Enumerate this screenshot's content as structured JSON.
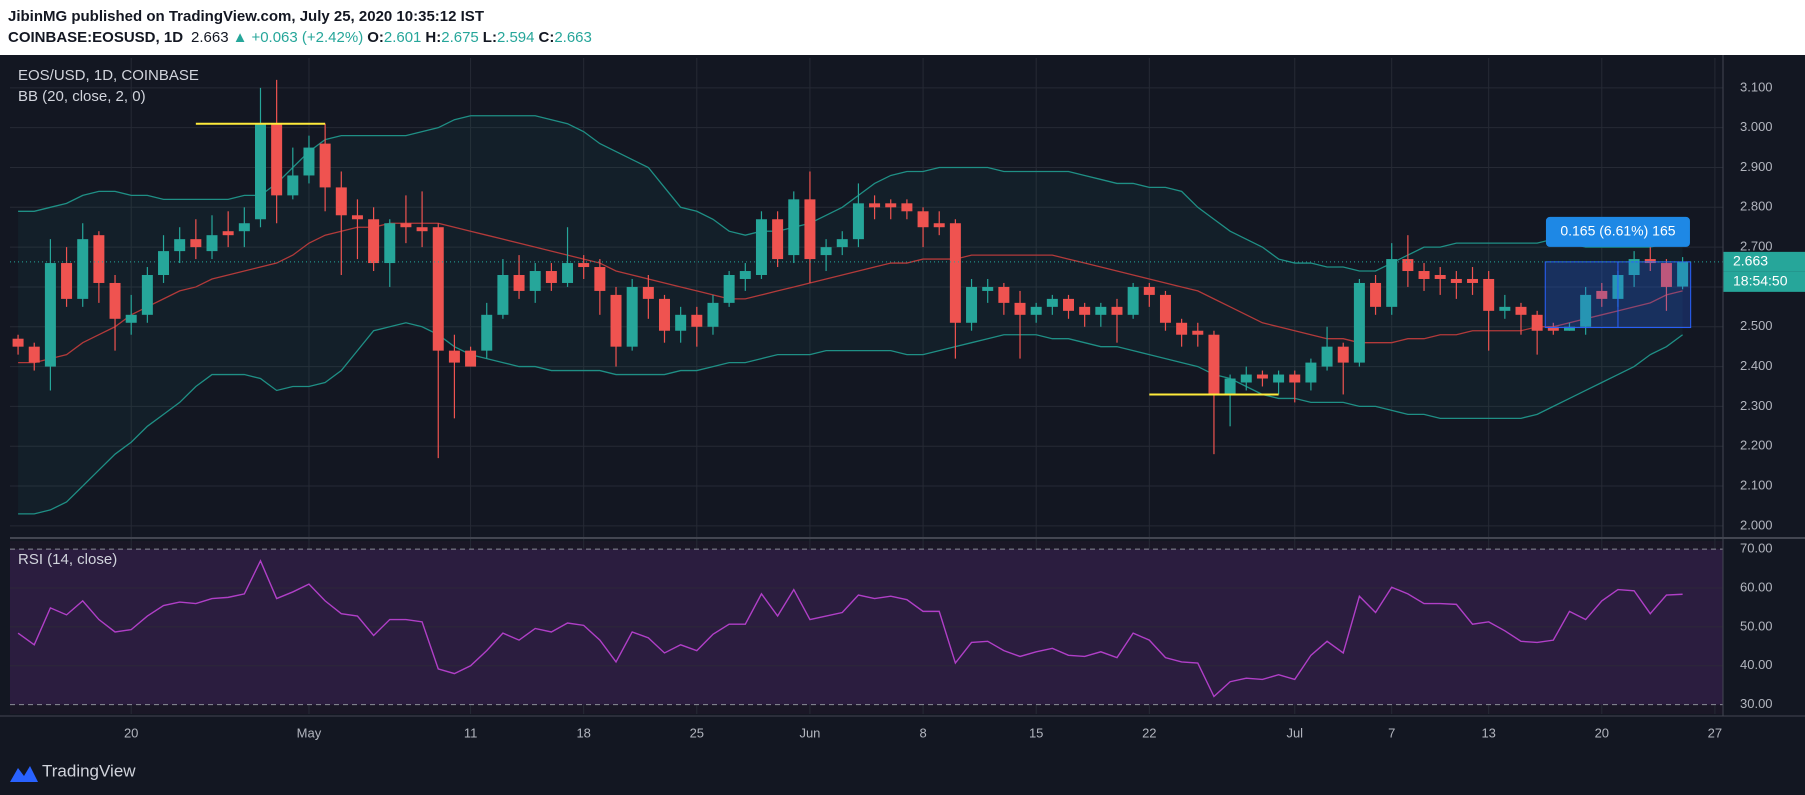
{
  "header": {
    "line1": "JibinMG published on TradingView.com, July 25, 2020 10:35:12 IST",
    "symbol": "COINBASE:EOSUSD, 1D",
    "price": "2.663",
    "change": "+0.063 (+2.42%)",
    "o_label": "O:",
    "o": "2.601",
    "h_label": "H:",
    "h": "2.675",
    "l_label": "L:",
    "l": "2.594",
    "c_label": "C:",
    "c": "2.663"
  },
  "footer": "TradingView",
  "chart_data": [
    {
      "type": "candlestick",
      "title": "EOS/USD, 1D, COINBASE",
      "indicator": "BB (20, close, 2, 0)",
      "up_color": "#26a69a",
      "down_color": "#ef5350",
      "band_color": "#1f8f85",
      "basis_color": "#b23a3a",
      "ylim": [
        1.977,
        3.175
      ],
      "yticks": [
        {
          "value": 2.0,
          "label": "2.000"
        },
        {
          "value": 2.1,
          "label": "2.100"
        },
        {
          "value": 2.2,
          "label": "2.200"
        },
        {
          "value": 2.3,
          "label": "2.300"
        },
        {
          "value": 2.4,
          "label": "2.400"
        },
        {
          "value": 2.5,
          "label": "2.500"
        },
        {
          "value": 2.6,
          "label": "2.600"
        },
        {
          "value": 2.7,
          "label": "2.700"
        },
        {
          "value": 2.8,
          "label": "2.800"
        },
        {
          "value": 2.9,
          "label": "2.900"
        },
        {
          "value": 3.0,
          "label": "3.000"
        },
        {
          "value": 3.1,
          "label": "3.100"
        }
      ],
      "grid": true,
      "last_price": 2.663,
      "countdown": "18:54:50",
      "levels": [
        3.01,
        2.33
      ],
      "measure": {
        "label": "0.165 (6.61%) 165",
        "from": 2.498,
        "to": 2.663
      },
      "open": [
        2.47,
        2.45,
        2.4,
        2.66,
        2.57,
        2.73,
        2.61,
        2.51,
        2.53,
        2.63,
        2.69,
        2.72,
        2.69,
        2.74,
        2.74,
        2.77,
        3.01,
        2.83,
        2.88,
        2.96,
        2.85,
        2.78,
        2.77,
        2.66,
        2.76,
        2.75,
        2.75,
        2.44,
        2.44,
        2.44,
        2.53,
        2.63,
        2.59,
        2.64,
        2.61,
        2.66,
        2.65,
        2.58,
        2.45,
        2.6,
        2.57,
        2.49,
        2.53,
        2.5,
        2.56,
        2.62,
        2.63,
        2.77,
        2.68,
        2.82,
        2.68,
        2.7,
        2.72,
        2.81,
        2.81,
        2.81,
        2.79,
        2.76,
        2.76,
        2.51,
        2.59,
        2.6,
        2.56,
        2.53,
        2.55,
        2.57,
        2.55,
        2.53,
        2.55,
        2.53,
        2.6,
        2.58,
        2.51,
        2.49,
        2.48,
        2.33,
        2.36,
        2.38,
        2.36,
        2.38,
        2.36,
        2.4,
        2.45,
        2.41,
        2.61,
        2.55,
        2.67,
        2.64,
        2.63,
        2.62,
        2.62,
        2.62,
        2.54,
        2.55,
        2.53,
        2.5,
        2.49,
        2.5,
        2.59,
        2.57,
        2.63,
        2.67,
        2.66,
        2.601,
        null,
        null
      ],
      "high": [
        2.48,
        2.46,
        2.72,
        2.7,
        2.76,
        2.74,
        2.63,
        2.58,
        2.65,
        2.73,
        2.75,
        2.77,
        2.78,
        2.79,
        2.8,
        3.1,
        3.12,
        2.95,
        2.98,
        3.01,
        2.89,
        2.82,
        2.8,
        2.77,
        2.83,
        2.84,
        2.76,
        2.48,
        2.45,
        2.56,
        2.67,
        2.68,
        2.66,
        2.66,
        2.75,
        2.68,
        2.67,
        2.6,
        2.62,
        2.63,
        2.58,
        2.55,
        2.55,
        2.58,
        2.64,
        2.66,
        2.79,
        2.79,
        2.84,
        2.89,
        2.72,
        2.74,
        2.86,
        2.83,
        2.82,
        2.82,
        2.8,
        2.79,
        2.77,
        2.62,
        2.62,
        2.61,
        2.59,
        2.56,
        2.58,
        2.58,
        2.56,
        2.56,
        2.57,
        2.61,
        2.61,
        2.59,
        2.52,
        2.51,
        2.49,
        2.38,
        2.4,
        2.39,
        2.39,
        2.39,
        2.42,
        2.5,
        2.46,
        2.62,
        2.63,
        2.71,
        2.73,
        2.66,
        2.65,
        2.64,
        2.65,
        2.64,
        2.58,
        2.56,
        2.54,
        2.51,
        2.51,
        2.6,
        2.61,
        2.64,
        2.69,
        2.7,
        2.67,
        2.675,
        null,
        null
      ],
      "low": [
        2.43,
        2.39,
        2.34,
        2.55,
        2.55,
        2.56,
        2.44,
        2.48,
        2.51,
        2.61,
        2.66,
        2.67,
        2.67,
        2.7,
        2.7,
        2.75,
        2.76,
        2.82,
        2.86,
        2.79,
        2.63,
        2.67,
        2.64,
        2.6,
        2.71,
        2.7,
        2.17,
        2.27,
        2.4,
        2.42,
        2.52,
        2.57,
        2.56,
        2.59,
        2.6,
        2.62,
        2.53,
        2.4,
        2.44,
        2.52,
        2.46,
        2.46,
        2.45,
        2.48,
        2.55,
        2.59,
        2.62,
        2.65,
        2.66,
        2.61,
        2.64,
        2.68,
        2.7,
        2.77,
        2.77,
        2.77,
        2.7,
        2.73,
        2.42,
        2.49,
        2.56,
        2.53,
        2.42,
        2.51,
        2.53,
        2.52,
        2.5,
        2.5,
        2.46,
        2.52,
        2.55,
        2.49,
        2.45,
        2.45,
        2.18,
        2.25,
        2.34,
        2.35,
        2.33,
        2.31,
        2.34,
        2.39,
        2.33,
        2.4,
        2.53,
        2.53,
        2.6,
        2.59,
        2.58,
        2.57,
        2.58,
        2.44,
        2.52,
        2.48,
        2.43,
        2.48,
        2.49,
        2.48,
        2.55,
        2.55,
        2.6,
        2.64,
        2.54,
        2.594,
        null,
        null
      ],
      "close": [
        2.45,
        2.41,
        2.66,
        2.57,
        2.72,
        2.61,
        2.52,
        2.53,
        2.63,
        2.69,
        2.72,
        2.7,
        2.73,
        2.73,
        2.76,
        3.01,
        2.83,
        2.88,
        2.95,
        2.85,
        2.78,
        2.77,
        2.66,
        2.76,
        2.75,
        2.74,
        2.44,
        2.41,
        2.4,
        2.53,
        2.63,
        2.59,
        2.64,
        2.61,
        2.66,
        2.65,
        2.59,
        2.45,
        2.6,
        2.57,
        2.49,
        2.53,
        2.5,
        2.56,
        2.63,
        2.64,
        2.77,
        2.67,
        2.82,
        2.67,
        2.7,
        2.72,
        2.81,
        2.8,
        2.8,
        2.79,
        2.75,
        2.75,
        2.51,
        2.6,
        2.6,
        2.56,
        2.53,
        2.55,
        2.57,
        2.54,
        2.53,
        2.55,
        2.53,
        2.6,
        2.58,
        2.51,
        2.48,
        2.48,
        2.33,
        2.37,
        2.38,
        2.37,
        2.38,
        2.36,
        2.41,
        2.45,
        2.41,
        2.61,
        2.55,
        2.67,
        2.64,
        2.62,
        2.62,
        2.61,
        2.61,
        2.54,
        2.55,
        2.53,
        2.49,
        2.49,
        2.5,
        2.58,
        2.57,
        2.63,
        2.67,
        2.66,
        2.6,
        2.663,
        null,
        null
      ],
      "bands": {
        "upper": [
          2.79,
          2.79,
          2.8,
          2.81,
          2.83,
          2.84,
          2.84,
          2.83,
          2.83,
          2.82,
          2.82,
          2.82,
          2.82,
          2.82,
          2.83,
          2.83,
          2.86,
          2.9,
          2.94,
          2.97,
          2.98,
          2.98,
          2.98,
          2.98,
          2.98,
          2.99,
          3.0,
          3.02,
          3.03,
          3.03,
          3.03,
          3.03,
          3.03,
          3.02,
          3.01,
          2.99,
          2.96,
          2.94,
          2.92,
          2.9,
          2.85,
          2.8,
          2.79,
          2.77,
          2.74,
          2.73,
          2.74,
          2.74,
          2.75,
          2.76,
          2.78,
          2.8,
          2.83,
          2.86,
          2.88,
          2.89,
          2.89,
          2.9,
          2.9,
          2.9,
          2.9,
          2.89,
          2.89,
          2.89,
          2.89,
          2.89,
          2.88,
          2.87,
          2.86,
          2.86,
          2.85,
          2.85,
          2.84,
          2.8,
          2.77,
          2.74,
          2.72,
          2.7,
          2.67,
          2.66,
          2.66,
          2.65,
          2.65,
          2.64,
          2.64,
          2.66,
          2.68,
          2.7,
          2.7,
          2.71,
          2.71,
          2.71,
          2.71,
          2.71,
          2.71,
          2.72,
          2.71,
          2.7,
          2.7,
          2.7,
          2.7,
          2.7,
          2.71,
          2.71,
          null,
          null
        ],
        "basis": [
          2.41,
          2.41,
          2.42,
          2.43,
          2.46,
          2.48,
          2.5,
          2.53,
          2.55,
          2.57,
          2.59,
          2.6,
          2.62,
          2.63,
          2.64,
          2.65,
          2.66,
          2.68,
          2.71,
          2.73,
          2.74,
          2.75,
          2.75,
          2.76,
          2.76,
          2.76,
          2.76,
          2.75,
          2.74,
          2.73,
          2.72,
          2.71,
          2.7,
          2.69,
          2.68,
          2.67,
          2.66,
          2.64,
          2.63,
          2.62,
          2.61,
          2.6,
          2.59,
          2.58,
          2.57,
          2.57,
          2.58,
          2.59,
          2.6,
          2.61,
          2.62,
          2.63,
          2.64,
          2.65,
          2.66,
          2.66,
          2.67,
          2.67,
          2.67,
          2.68,
          2.68,
          2.68,
          2.68,
          2.68,
          2.68,
          2.67,
          2.66,
          2.65,
          2.64,
          2.63,
          2.62,
          2.61,
          2.6,
          2.59,
          2.57,
          2.55,
          2.53,
          2.51,
          2.5,
          2.49,
          2.48,
          2.47,
          2.47,
          2.46,
          2.46,
          2.46,
          2.47,
          2.47,
          2.48,
          2.48,
          2.49,
          2.49,
          2.49,
          2.49,
          2.5,
          2.5,
          2.51,
          2.52,
          2.53,
          2.54,
          2.55,
          2.56,
          2.58,
          2.59,
          null,
          null
        ],
        "lower": [
          2.03,
          2.03,
          2.04,
          2.06,
          2.1,
          2.14,
          2.18,
          2.21,
          2.25,
          2.28,
          2.31,
          2.35,
          2.38,
          2.38,
          2.38,
          2.37,
          2.34,
          2.35,
          2.35,
          2.36,
          2.39,
          2.44,
          2.49,
          2.5,
          2.51,
          2.5,
          2.48,
          2.45,
          2.43,
          2.42,
          2.41,
          2.4,
          2.4,
          2.39,
          2.39,
          2.39,
          2.39,
          2.38,
          2.38,
          2.38,
          2.38,
          2.39,
          2.39,
          2.4,
          2.41,
          2.41,
          2.42,
          2.43,
          2.43,
          2.43,
          2.44,
          2.44,
          2.44,
          2.44,
          2.44,
          2.43,
          2.43,
          2.44,
          2.45,
          2.46,
          2.47,
          2.48,
          2.48,
          2.48,
          2.47,
          2.47,
          2.46,
          2.45,
          2.45,
          2.44,
          2.43,
          2.42,
          2.41,
          2.4,
          2.38,
          2.37,
          2.35,
          2.33,
          2.32,
          2.32,
          2.31,
          2.31,
          2.31,
          2.3,
          2.3,
          2.29,
          2.28,
          2.28,
          2.27,
          2.27,
          2.27,
          2.27,
          2.27,
          2.27,
          2.28,
          2.3,
          2.32,
          2.34,
          2.36,
          2.38,
          2.4,
          2.43,
          2.45,
          2.48,
          null,
          null
        ]
      }
    },
    {
      "type": "line",
      "title": "RSI (14, close)",
      "color": "#b03fc7",
      "band_color": "#2b1d3f",
      "ylim": [
        27.6,
        72.1
      ],
      "yticks": [
        {
          "value": 30,
          "label": "30.00"
        },
        {
          "value": 40,
          "label": "40.00"
        },
        {
          "value": 50,
          "label": "50.00"
        },
        {
          "value": 60,
          "label": "60.00"
        },
        {
          "value": 70,
          "label": "70.00"
        }
      ],
      "band": [
        30,
        70
      ],
      "categories": [
        null,
        null,
        null,
        null,
        null,
        null,
        null,
        "20",
        null,
        null,
        null,
        null,
        null,
        null,
        null,
        null,
        null,
        null,
        "May",
        null,
        null,
        null,
        null,
        null,
        null,
        null,
        null,
        null,
        "11",
        null,
        null,
        null,
        null,
        null,
        null,
        "18",
        null,
        null,
        null,
        null,
        null,
        null,
        "25",
        null,
        null,
        null,
        null,
        null,
        null,
        "Jun",
        null,
        null,
        null,
        null,
        null,
        null,
        "8",
        null,
        null,
        null,
        null,
        null,
        null,
        "15",
        null,
        null,
        null,
        null,
        null,
        null,
        "22",
        null,
        null,
        null,
        null,
        null,
        null,
        null,
        null,
        "Jul",
        null,
        null,
        null,
        null,
        null,
        "7",
        null,
        null,
        null,
        null,
        null,
        "13",
        null,
        null,
        null,
        null,
        null,
        null,
        "20",
        null,
        null,
        null,
        null,
        null,
        null,
        "27"
      ],
      "values": [
        48.4,
        45.4,
        54.9,
        53.1,
        56.7,
        51.9,
        48.7,
        49.3,
        52.8,
        55.5,
        56.4,
        56.0,
        57.3,
        57.6,
        58.5,
        67.0,
        57.3,
        59.0,
        61.0,
        56.7,
        53.4,
        52.8,
        47.8,
        51.9,
        51.9,
        51.3,
        39.2,
        38.0,
        40.0,
        43.9,
        48.4,
        46.6,
        49.6,
        48.7,
        51.0,
        50.4,
        46.6,
        41.0,
        48.7,
        47.2,
        43.3,
        45.4,
        43.9,
        48.1,
        50.7,
        50.7,
        58.5,
        52.8,
        59.6,
        51.9,
        52.8,
        53.7,
        58.2,
        57.3,
        57.9,
        57.0,
        54.0,
        54.0,
        40.7,
        46.0,
        46.3,
        43.9,
        42.4,
        43.6,
        44.5,
        42.7,
        42.4,
        43.6,
        42.1,
        48.4,
        46.6,
        42.1,
        41.0,
        40.7,
        32.1,
        35.9,
        36.8,
        36.5,
        37.7,
        36.5,
        42.7,
        46.3,
        43.3,
        57.9,
        53.7,
        60.2,
        58.5,
        56.0,
        56.0,
        55.8,
        50.7,
        51.3,
        49.0,
        46.3,
        46.0,
        46.6,
        54.0,
        51.9,
        56.7,
        59.6,
        59.3,
        53.4,
        58.2,
        58.4,
        null,
        null
      ]
    }
  ]
}
